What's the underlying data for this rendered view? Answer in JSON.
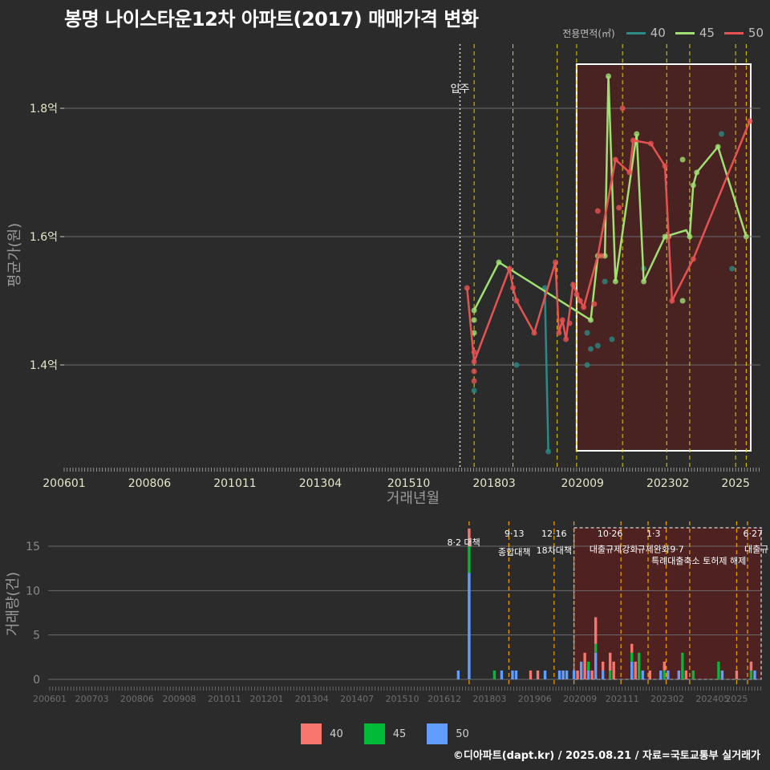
{
  "title": "봉명 나이스타운12차 아파트(2017) 매매가격 변화",
  "footer": "©디아파트(dapt.kr) / 2025.08.21 / 자료=국토교통부 실거래가",
  "legend_top": {
    "title": "전용면적(㎡)",
    "items": [
      {
        "label": "40",
        "color": "#2a8a86"
      },
      {
        "label": "45",
        "color": "#9ee072"
      },
      {
        "label": "50",
        "color": "#e65252"
      }
    ]
  },
  "legend_bottom": {
    "items": [
      {
        "label": "40",
        "color": "#f8766d"
      },
      {
        "label": "45",
        "color": "#00ba38"
      },
      {
        "label": "50",
        "color": "#619cff"
      }
    ]
  },
  "chart_data": [
    {
      "type": "line",
      "title": "봉명 나이스타운12차 아파트(2017) 매매가격 변화",
      "xlabel": "거래년월",
      "ylabel": "평균가(원)",
      "x_ticks": [
        "200601",
        "200806",
        "201011",
        "201304",
        "201510",
        "201803",
        "202009",
        "202302",
        "2025"
      ],
      "y_ticks": [
        "1.4억",
        "1.6억",
        "1.8억"
      ],
      "y_tick_values": [
        1.4,
        1.6,
        1.8
      ],
      "ylim": [
        1.24,
        1.9
      ],
      "xlim": [
        2006.0,
        2025.7
      ],
      "occupancy": {
        "x": 2017.2,
        "label": "입주"
      },
      "policy_lines": [
        2017.6,
        2018.7,
        2019.95,
        2020.5,
        2021.8,
        2023.05,
        2023.7,
        2025.0,
        2025.3
      ],
      "highlight_range": [
        2020.5,
        2025.7
      ],
      "series": [
        {
          "name": "40",
          "color": "#2a8a86",
          "points": [
            [
              2017.6,
              1.36
            ],
            [
              2018.8,
              1.4
            ],
            [
              2019.6,
              1.52
            ],
            [
              2019.7,
              1.265
            ],
            [
              2020.8,
              1.45
            ],
            [
              2020.8,
              1.4
            ],
            [
              2020.9,
              1.425
            ],
            [
              2021.1,
              1.43
            ],
            [
              2021.3,
              1.53
            ],
            [
              2021.5,
              1.44
            ],
            [
              2022.4,
              1.55
            ],
            [
              2024.6,
              1.76
            ],
            [
              2024.9,
              1.55
            ]
          ],
          "line": [
            [
              2019.6,
              1.52
            ],
            [
              2019.7,
              1.265
            ]
          ]
        },
        {
          "name": "45",
          "color": "#9ee072",
          "points": [
            [
              2017.6,
              1.485
            ],
            [
              2017.6,
              1.47
            ],
            [
              2017.6,
              1.45
            ],
            [
              2018.3,
              1.56
            ],
            [
              2020.9,
              1.47
            ],
            [
              2021.1,
              1.57
            ],
            [
              2021.3,
              1.57
            ],
            [
              2021.4,
              1.85
            ],
            [
              2021.6,
              1.53
            ],
            [
              2022.2,
              1.76
            ],
            [
              2022.4,
              1.53
            ],
            [
              2023.0,
              1.6
            ],
            [
              2023.1,
              1.6
            ],
            [
              2023.5,
              1.5
            ],
            [
              2023.5,
              1.72
            ],
            [
              2023.7,
              1.6
            ],
            [
              2023.8,
              1.68
            ],
            [
              2023.9,
              1.7
            ],
            [
              2024.5,
              1.74
            ],
            [
              2025.3,
              1.6
            ]
          ],
          "line": [
            [
              2017.6,
              1.485
            ],
            [
              2018.3,
              1.56
            ],
            [
              2020.9,
              1.47
            ],
            [
              2021.1,
              1.57
            ],
            [
              2021.3,
              1.57
            ],
            [
              2021.4,
              1.85
            ],
            [
              2021.6,
              1.53
            ],
            [
              2022.2,
              1.76
            ],
            [
              2022.4,
              1.53
            ],
            [
              2023.0,
              1.6
            ],
            [
              2023.6,
              1.61
            ],
            [
              2023.7,
              1.6
            ],
            [
              2023.8,
              1.68
            ],
            [
              2023.9,
              1.7
            ],
            [
              2024.5,
              1.74
            ],
            [
              2025.3,
              1.6
            ]
          ]
        },
        {
          "name": "50",
          "color": "#e65252",
          "points": [
            [
              2017.4,
              1.52
            ],
            [
              2017.6,
              1.42
            ],
            [
              2017.6,
              1.405
            ],
            [
              2017.6,
              1.39
            ],
            [
              2017.6,
              1.375
            ],
            [
              2018.6,
              1.55
            ],
            [
              2018.7,
              1.52
            ],
            [
              2018.8,
              1.5
            ],
            [
              2019.3,
              1.45
            ],
            [
              2019.9,
              1.56
            ],
            [
              2020.0,
              1.45
            ],
            [
              2020.1,
              1.47
            ],
            [
              2020.2,
              1.44
            ],
            [
              2020.3,
              1.465
            ],
            [
              2020.4,
              1.525
            ],
            [
              2020.5,
              1.51
            ],
            [
              2020.6,
              1.5
            ],
            [
              2020.7,
              1.49
            ],
            [
              2021.0,
              1.495
            ],
            [
              2021.1,
              1.64
            ],
            [
              2021.2,
              1.57
            ],
            [
              2021.6,
              1.72
            ],
            [
              2021.7,
              1.645
            ],
            [
              2021.8,
              1.8
            ],
            [
              2022.0,
              1.7
            ],
            [
              2022.1,
              1.75
            ],
            [
              2022.6,
              1.745
            ],
            [
              2023.0,
              1.71
            ],
            [
              2023.2,
              1.5
            ],
            [
              2023.8,
              1.565
            ],
            [
              2025.4,
              1.78
            ]
          ],
          "line": [
            [
              2017.4,
              1.52
            ],
            [
              2017.6,
              1.405
            ],
            [
              2018.6,
              1.55
            ],
            [
              2018.7,
              1.52
            ],
            [
              2018.8,
              1.5
            ],
            [
              2019.3,
              1.45
            ],
            [
              2019.9,
              1.56
            ],
            [
              2020.0,
              1.45
            ],
            [
              2020.1,
              1.47
            ],
            [
              2020.2,
              1.44
            ],
            [
              2020.4,
              1.525
            ],
            [
              2020.6,
              1.5
            ],
            [
              2020.7,
              1.49
            ],
            [
              2021.1,
              1.57
            ],
            [
              2021.6,
              1.72
            ],
            [
              2022.0,
              1.7
            ],
            [
              2022.1,
              1.75
            ],
            [
              2022.6,
              1.745
            ],
            [
              2023.0,
              1.71
            ],
            [
              2023.2,
              1.5
            ],
            [
              2023.8,
              1.565
            ],
            [
              2025.4,
              1.78
            ]
          ]
        }
      ]
    },
    {
      "type": "bar",
      "stacked": true,
      "ylabel": "거래량(건)",
      "x_ticks": [
        "200601",
        "200703",
        "200806",
        "200908",
        "201011",
        "201201",
        "201304",
        "201407",
        "201510",
        "201612",
        "201803",
        "201906",
        "202009",
        "202111",
        "202302",
        "202405",
        "2025"
      ],
      "y_ticks": [
        "0",
        "5",
        "10",
        "15"
      ],
      "y_tick_values": [
        0,
        5,
        10,
        15
      ],
      "ylim": [
        0,
        18
      ],
      "xlim": [
        2006.0,
        2025.7
      ],
      "highlight_range": [
        2020.5,
        2025.7
      ],
      "policy_lines": [
        2017.6,
        2018.7,
        2019.95,
        2020.5,
        2021.8,
        2022.55,
        2023.05,
        2023.7,
        2025.0,
        2025.3
      ],
      "annotations": [
        {
          "x": 2017.45,
          "y": 15.1,
          "text": "8·2 대책"
        },
        {
          "x": 2018.85,
          "y": 16.1,
          "text": "9·13"
        },
        {
          "x": 2018.85,
          "y": 14.0,
          "text": "종합대책"
        },
        {
          "x": 2019.95,
          "y": 16.1,
          "text": "12·16"
        },
        {
          "x": 2019.95,
          "y": 14.2,
          "text": "18차대책"
        },
        {
          "x": 2021.5,
          "y": 16.1,
          "text": "10·26"
        },
        {
          "x": 2021.6,
          "y": 14.3,
          "text": "대출규제강화"
        },
        {
          "x": 2022.7,
          "y": 16.1,
          "text": "1·3"
        },
        {
          "x": 2022.7,
          "y": 14.3,
          "text": "규제완화"
        },
        {
          "x": 2023.35,
          "y": 14.3,
          "text": "9·7"
        },
        {
          "x": 2023.95,
          "y": 13.0,
          "text": "특례대출축소 토허제 해제"
        },
        {
          "x": 2025.45,
          "y": 16.1,
          "text": "6·27"
        },
        {
          "x": 2025.55,
          "y": 14.3,
          "text": "대출규"
        }
      ],
      "series": [
        {
          "name": "50",
          "color": "#619cff",
          "points": [
            [
              2017.3,
              1
            ],
            [
              2017.6,
              12
            ],
            [
              2018.5,
              1
            ],
            [
              2018.8,
              1
            ],
            [
              2018.9,
              1
            ],
            [
              2019.7,
              1
            ],
            [
              2020.1,
              1
            ],
            [
              2020.2,
              1
            ],
            [
              2020.3,
              1
            ],
            [
              2020.5,
              1
            ],
            [
              2020.7,
              2
            ],
            [
              2020.9,
              1
            ],
            [
              2021.1,
              3
            ],
            [
              2021.3,
              1
            ],
            [
              2022.1,
              2
            ],
            [
              2022.4,
              1
            ],
            [
              2022.9,
              1
            ],
            [
              2023.1,
              1
            ],
            [
              2023.4,
              1
            ],
            [
              2024.6,
              1
            ],
            [
              2025.5,
              1
            ]
          ]
        },
        {
          "name": "45",
          "color": "#00ba38",
          "points": [
            [
              2017.6,
              3
            ],
            [
              2018.3,
              1
            ],
            [
              2020.9,
              1
            ],
            [
              2021.1,
              1
            ],
            [
              2021.5,
              1
            ],
            [
              2022.1,
              1
            ],
            [
              2022.3,
              3
            ],
            [
              2023.0,
              1
            ],
            [
              2023.5,
              3
            ],
            [
              2023.8,
              1
            ],
            [
              2024.5,
              2
            ],
            [
              2025.4,
              1
            ]
          ]
        },
        {
          "name": "40",
          "color": "#f8766d",
          "points": [
            [
              2017.6,
              2
            ],
            [
              2019.3,
              1
            ],
            [
              2019.5,
              1
            ],
            [
              2020.6,
              1
            ],
            [
              2020.8,
              3
            ],
            [
              2021.0,
              1
            ],
            [
              2021.1,
              3
            ],
            [
              2021.3,
              1
            ],
            [
              2021.5,
              2
            ],
            [
              2021.6,
              2
            ],
            [
              2022.1,
              1
            ],
            [
              2022.2,
              2
            ],
            [
              2022.6,
              1
            ],
            [
              2023.0,
              1
            ],
            [
              2023.6,
              1
            ],
            [
              2025.0,
              1
            ],
            [
              2025.4,
              1
            ]
          ]
        }
      ]
    }
  ]
}
